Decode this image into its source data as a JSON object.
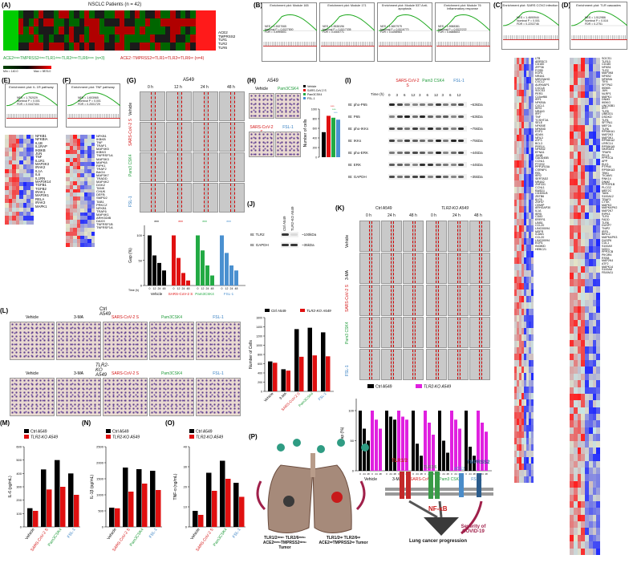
{
  "panels": {
    "A": {
      "label": "(A)",
      "title": "NSCLC Patients (n = 42)",
      "genes": [
        "ACE2",
        "TMPRSS2",
        "TLR1",
        "TLR2",
        "TLR6"
      ],
      "group_left": "ACE2ᵈᵒʷⁿTMPRSS2ᵈᵒʷⁿTLR1ᵈᵒʷⁿTLR2ᵈᵒʷⁿTLR6ᵈᵒʷⁿ (n=3)",
      "group_right": "ACE2↑TMPRSS2ᵘᵖTLR1ᵘᵖTLR2ᵘᵖTLR6ᵘᵖ (n=4)",
      "scale_left": "Min = 140.0",
      "scale_right": "Max = 9876.0"
    },
    "B": {
      "label": "(B)",
      "plots": [
        {
          "title": "Enrichment plot: Module 165",
          "nes": "NES = 1.5327065",
          "nominal": "Nominal P = 0.0027800",
          "fdr": "FDR = 0.4995501"
        },
        {
          "title": "Enrichment plot: Module 171",
          "nes": "NES = 1.5538196",
          "nominal": "Nominal P = 0.0017335",
          "fdr": "FDR = 0.4306771"
        },
        {
          "title": "Enrichment plot: Module 537 Anti-apoptosis",
          "nes": "NES = 1.5697979",
          "nominal": "Nominal P = 0.0016770",
          "fdr": "FDR = 0.4258983"
        },
        {
          "title": "Enrichment plot: Module 76 Inflammatory response",
          "nes": "NES = 1.5988381",
          "nominal": "Nominal P = 0.0022222",
          "fdr": "FDR = 0.4688603"
        }
      ]
    },
    "C": {
      "label": "(C)",
      "title": "Enrichment plot: SARS COV2 infection",
      "nes": "NES = 1.4690944",
      "nominal": "Nominal P = 0.001",
      "fdr": "FDR = 0.2202746",
      "genes": [
        "LTB",
        "ARRDC3",
        "CD160",
        "ZFP36",
        "FOSB",
        "EGR1",
        "NR4A1",
        "MIR23AHG",
        "CXCL2",
        "AURKAIP1",
        "CXCL8",
        "SOCS3",
        "PER3",
        "C15orf66",
        "IRF1",
        "NFKBIA",
        "CXCL1",
        "IER3",
        "NR4A3",
        "IRF7",
        "TNF",
        "TCSHT2A",
        "SELE",
        "NFKBIE",
        "NFKBID",
        "ESF3",
        "ADAN",
        "NFIL3",
        "ATF3",
        "BCL3",
        "PRR14",
        "NFKBIZ",
        "EFNA1",
        "JUNB",
        "GADD45B",
        "CCNL1",
        "PTGS2",
        "PPP1R15A",
        "CSRNP1",
        "REL",
        "IER2",
        "SERTAD2",
        "NR4A2",
        "ZNF331",
        "CCNL1",
        "RASD1",
        "CD300LB",
        "ZBTB6",
        "KLF6",
        "ZNF57",
        "CEMIP",
        "ARHGAP30",
        "IL1A",
        "IER5",
        "CD83",
        "ERRFI1",
        "LIN51",
        "CCL20",
        "LINC00094",
        "MSFR",
        "ICAM1",
        "CCL20",
        "LINC00094",
        "EGR1",
        "INO80D",
        "HEBC21"
      ]
    },
    "D": {
      "label": "(D)",
      "title": "Enrichment plot: TLR cascades",
      "nes": "NES = 1.512986",
      "nominal": "Nominal P = 0.016",
      "fdr": "FDR = 0.2751",
      "genes": [
        "SOCS1",
        "TLR10",
        "CD180",
        "NFKB1",
        "TLR2",
        "MAP3K8",
        "NFKB2",
        "NFKBIA",
        "TIFA",
        "SFTPA2",
        "IKBKB",
        "JUN",
        "NLRP1",
        "MAPK1",
        "DNM3",
        "IKBKG",
        "UNC93B1",
        "IRF7",
        "TLR5",
        "UBE2D1",
        "DSDKD",
        "TLR1",
        "SFTPA1",
        "MEF2A",
        "TLR6",
        "RPS6KA1",
        "MAP2K3",
        "MAP3K1",
        "RPS6KA2",
        "LRRC14",
        "RPS6KA5",
        "NKIRAS1",
        "TRAF6",
        "PELI1",
        "PPP2CA",
        "APP",
        "ELK1",
        "PTPN4",
        "RPS6KA3",
        "TBK1",
        "TICAM1",
        "RNK14",
        "DNM2",
        "PPP2R1B",
        "PLCG2",
        "MEF2C",
        "TAB1",
        "S100A12",
        "TRAF3",
        "CTSK",
        "MAPK3",
        "MAPKAPK2",
        "MAP2K7",
        "RIPK3",
        "TLR4",
        "FADD",
        "TLR8",
        "DUSP7",
        "TNIP2",
        "IRF5",
        "BIRC2",
        "MAPKAPK3",
        "DUSP6",
        "CUL1",
        "S100A9",
        "NOD1",
        "PPP2CB",
        "PIK3R4",
        "RSS8",
        "MAP2K4",
        "ATF2",
        "MAPK14",
        "S100A8",
        "FBXW11"
      ]
    },
    "E": {
      "label": "(E)",
      "title": "Enrichment plot: IL 1R pathway",
      "nes": "NES = 1.752029",
      "nominal": "Nominal P = 0.001",
      "fdr": "FDR = 0.0447404",
      "genes": [
        "NFKB1",
        "NFKBIA",
        "IL1B",
        "IL1RAP",
        "IKBKB",
        "JUN",
        "TNF",
        "IL1R1",
        "MAP3K3",
        "IRAK2",
        "IL1A",
        "IL6",
        "IL1RN",
        "MAP3K14",
        "TGFB1",
        "TGFB2",
        "IRAK1",
        "MAP3K1",
        "RELA",
        "IRAK3",
        "MAPK1"
      ]
    },
    "F": {
      "label": "(F)",
      "title": "Enrichment plot: TNF pathway",
      "nes": "NES = 1.603965",
      "nominal": "Nominal P = 0.001",
      "fdr": "FDR = 0.2001729",
      "genes": [
        "NFKB1",
        "IKBKB",
        "TNF",
        "TRAF1",
        "MAP4K5",
        "IKBKG",
        "TNFRSF1A",
        "MAP3K3",
        "MAPK8",
        "RIPK1",
        "TRAF2",
        "BAG4",
        "MAP3K7",
        "TRADD",
        "MAP4K2",
        "DGKZ",
        "TANK",
        "CHUK",
        "DEFB",
        "SMPD2",
        "TAB1",
        "PRKCZ",
        "NFKB1",
        "TRAF6",
        "MAP4K1",
        "ARHGDIB",
        "DAXX",
        "TNFRSF1B",
        "TNFRSF1A"
      ]
    },
    "G": {
      "label": "(G)",
      "cell": "A549",
      "times": [
        "0 h",
        "12 h",
        "24 h",
        "48 h"
      ],
      "rows": [
        "Vehicle",
        "SARS-CoV-2 S",
        "Pam3 CSK4",
        "FSL-1"
      ],
      "chart_data": {
        "type": "bar",
        "ylabel": "Gap (%)",
        "xlabel_prefix": "Time (h)",
        "ylim": [
          0,
          120
        ],
        "yticks": [
          0,
          50,
          100
        ],
        "time_points": [
          "0",
          "12",
          "24",
          "48"
        ],
        "groups": [
          {
            "name": "Vehicle",
            "color": "#000000",
            "values": [
              100,
              60,
              45,
              30
            ]
          },
          {
            "name": "SARS-CoV-2 S",
            "color": "#e01010",
            "values": [
              100,
              55,
              25,
              10
            ]
          },
          {
            "name": "Pam3CSK4",
            "color": "#22aa44",
            "values": [
              100,
              70,
              40,
              20
            ]
          },
          {
            "name": "FSL-1",
            "color": "#4a90d0",
            "values": [
              100,
              65,
              40,
              30
            ]
          }
        ],
        "significance": [
          "***",
          "***",
          "***",
          "***"
        ]
      }
    },
    "H": {
      "label": "(H)",
      "cell": "A549",
      "images": [
        "Vehicle",
        "Pam3CSK4",
        "SARS-CoV-2 S",
        "FSL-1"
      ],
      "chart_data": {
        "type": "bar",
        "ylabel": "Number of cells",
        "ylim": [
          0,
          1000
        ],
        "yticks": [
          0,
          200,
          400,
          600,
          800,
          1000
        ],
        "categories": [
          "Vehicle",
          "SARS-CoV-2 S",
          "Pam3CSK4",
          "FSL-1"
        ],
        "values": [
          520,
          860,
          820,
          780
        ],
        "colors": [
          "#000000",
          "#e01010",
          "#22aa44",
          "#4a90d0"
        ],
        "legend": [
          "Vehicle",
          "SARS-CoV-2 S",
          "Pam3CSK4",
          "FSL-1"
        ],
        "significance": [
          "***",
          "***",
          "***"
        ]
      }
    },
    "I": {
      "label": "(I)",
      "groups": [
        "SARS-CoV-2 S",
        "Pam3 CSK4",
        "FSL-1"
      ],
      "time_label": "Time (h)",
      "times": [
        "0",
        "3",
        "6",
        "12",
        "3",
        "6",
        "12",
        "3",
        "6",
        "12"
      ],
      "blots": [
        {
          "name": "IB: pho-P65",
          "kda": "~63kDa"
        },
        {
          "name": "IB: P65",
          "kda": "~63kDa"
        },
        {
          "name": "IB: pho-IKKs",
          "kda": "~75kDa"
        },
        {
          "name": "IB: IKKs",
          "kda": "~75kDa"
        },
        {
          "name": "IB: pho-ERK",
          "kda": "~44kDa"
        },
        {
          "name": "IB: ERK",
          "kda": "~44kDa"
        },
        {
          "name": "IB: GAPDH",
          "kda": "~35kDa"
        }
      ]
    },
    "J": {
      "label": "(J)",
      "lanes": [
        "Ctrl A549",
        "TLR2-KO A549"
      ],
      "blots": [
        {
          "name": "IB: TLR2",
          "kda": "~100kDa"
        },
        {
          "name": "IB: GAPDH",
          "kda": "~35kDa"
        }
      ]
    },
    "K": {
      "label": "(K)",
      "col_groups": [
        "Ctrl A549",
        "TLR2-KO A549"
      ],
      "times": [
        "0 h",
        "24 h",
        "48 h",
        "0 h",
        "24 h",
        "48 h"
      ],
      "rows": [
        "Vehicle",
        "3-MA",
        "SARS-CoV-2 S",
        "Pam3 CSK4",
        "FSL-1"
      ],
      "legend": [
        "Ctrl A549",
        "TLR2-KO A549"
      ],
      "chart_data": {
        "type": "bar",
        "ylabel": "Gap (%)",
        "ylim": [
          0,
          120
        ],
        "yticks": [
          0,
          50,
          100
        ],
        "categories": [
          "Vehicle",
          "3-MA",
          "SARS-CoV-2 S",
          "Pam3 CSK4",
          "FSL-1"
        ],
        "time_points": [
          "0",
          "24",
          "48"
        ],
        "series": [
          {
            "name": "Ctrl A549",
            "color": "#000000",
            "values": [
              [
                100,
                70,
                50
              ],
              [
                100,
                90,
                85
              ],
              [
                100,
                45,
                25
              ],
              [
                100,
                50,
                30
              ],
              [
                100,
                40,
                25
              ]
            ]
          },
          {
            "name": "TLR2-KO A549",
            "color": "#e020e0",
            "values": [
              [
                100,
                85,
                70
              ],
              [
                100,
                90,
                85
              ],
              [
                100,
                80,
                60
              ],
              [
                100,
                85,
                70
              ],
              [
                100,
                80,
                65
              ]
            ]
          }
        ]
      }
    },
    "L": {
      "label": "(L)",
      "row1": "Ctrl A549",
      "row2": "TLR2-KO A549",
      "cols": [
        "Vehicle",
        "3-MA",
        "SARS-CoV-2 S",
        "Pam3CSK4",
        "FSL-1"
      ],
      "legend": [
        "Ctrl A549",
        "TLR2-KO A549"
      ],
      "chart_data": {
        "type": "bar",
        "ylabel": "Number of Cells",
        "ylim": [
          0,
          1600
        ],
        "yticks": [
          0,
          200,
          400,
          600,
          800,
          1000,
          1200,
          1400,
          1600
        ],
        "categories": [
          "Vehicle",
          "3-MA",
          "SARS-CoV-2 S",
          "Pam3CSK4",
          "FSL-1"
        ],
        "series": [
          {
            "name": "Ctrl A549",
            "color": "#000000",
            "values": [
              650,
              480,
              1350,
              1380,
              1280
            ]
          },
          {
            "name": "TLR2-KO A549",
            "color": "#e01010",
            "values": [
              620,
              450,
              750,
              780,
              760
            ]
          }
        ]
      }
    },
    "M": {
      "label": "(M)",
      "legend": [
        "Ctrl A549",
        "TLR2-KO A549"
      ],
      "chart_data": {
        "type": "bar",
        "ylabel": "IL-6 (pg/mL)",
        "ylim": [
          0,
          600
        ],
        "yticks": [
          0,
          100,
          200,
          300,
          400,
          500,
          600
        ],
        "categories": [
          "Vehicle",
          "SARS-CoV-2 S",
          "Pam3CSK4",
          "FSL-1"
        ],
        "series": [
          {
            "name": "Ctrl A549",
            "color": "#000000",
            "values": [
              140,
              430,
              500,
              400
            ]
          },
          {
            "name": "TLR2-KO A549",
            "color": "#e01010",
            "values": [
              120,
              280,
              300,
              240
            ]
          }
        ]
      }
    },
    "N": {
      "label": "(N)",
      "legend": [
        "Ctrl A549",
        "TLR2-KO A549"
      ],
      "chart_data": {
        "type": "bar",
        "ylabel": "IL-1β (pg/mL)",
        "ylim": [
          0,
          2500
        ],
        "yticks": [
          0,
          500,
          1000,
          1500,
          2000,
          2500
        ],
        "categories": [
          "Vehicle",
          "SARS-CoV-2 S",
          "Pam3CSK4",
          "FSL-1"
        ],
        "series": [
          {
            "name": "Ctrl A549",
            "color": "#000000",
            "values": [
              600,
              1850,
              1800,
              1750
            ]
          },
          {
            "name": "TLR2-KO A549",
            "color": "#e01010",
            "values": [
              580,
              1100,
              1350,
              1150
            ]
          }
        ]
      }
    },
    "O": {
      "label": "(O)",
      "legend": [
        "Ctrl A549",
        "TLR2-KO A549"
      ],
      "chart_data": {
        "type": "bar",
        "ylabel": "TNF-α (ng/mL)",
        "ylim": [
          0,
          40
        ],
        "yticks": [
          0,
          10,
          20,
          30,
          40
        ],
        "categories": [
          "Vehicle",
          "SARS-CoV-2 S",
          "Pam3CSK4",
          "FSL-1"
        ],
        "series": [
          {
            "name": "Ctrl A549",
            "color": "#000000",
            "values": [
              8,
              27,
              33,
              22
            ]
          },
          {
            "name": "TLR2-KO A549",
            "color": "#e01010",
            "values": [
              6,
              18,
              24,
              15
            ]
          }
        ]
      }
    },
    "P": {
      "label": "(P)",
      "receptors": [
        "TLR1/2",
        "TLR2/6",
        "ACE2",
        "TMPRSS2"
      ],
      "nfkb": "NF-κB",
      "outcome1": "Lung cancer progression",
      "outcome2": "Severity of COVID-19",
      "tumor_left": "TLR1/2ᵈᵒʷⁿ TLR2/6ᵈᵒʷⁿ ACE2ᵈᵒʷⁿTMPRSS2ᵈᵒʷⁿ Tumor",
      "tumor_right": "TLR1/2ᵘᵖ TLR2/6ᵘᵖ ACE2ᵘᵖTMPRSS2ᵘᵖ Tumor"
    }
  }
}
